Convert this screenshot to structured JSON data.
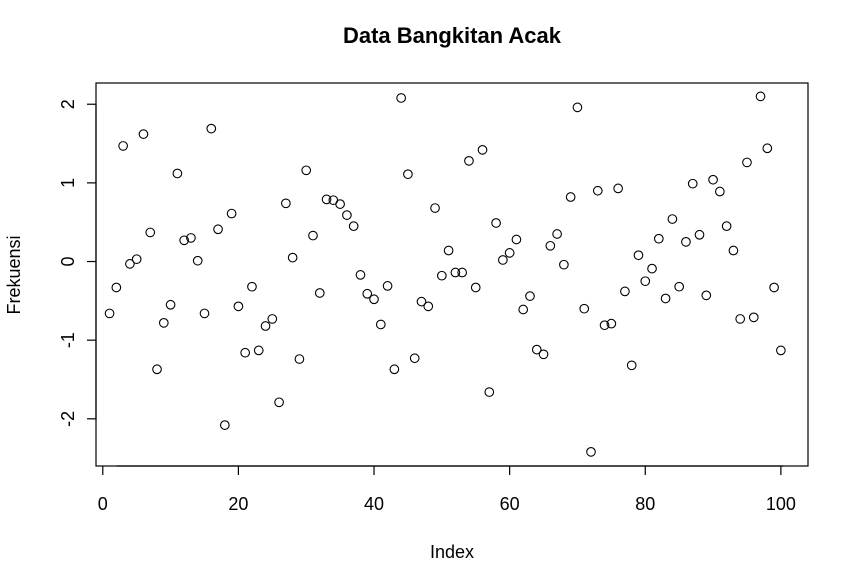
{
  "chart_data": {
    "type": "scatter",
    "title": "Data Bangkitan Acak",
    "xlabel": "Index",
    "ylabel": "Frekuensi",
    "xlim": [
      -1,
      104
    ],
    "ylim": [
      -2.6,
      2.27
    ],
    "x_ticks": [
      0,
      20,
      40,
      60,
      80,
      100
    ],
    "y_ticks": [
      -2,
      -1,
      0,
      1,
      2
    ],
    "x_tick_labels": [
      "0",
      "20",
      "40",
      "60",
      "80",
      "100"
    ],
    "y_tick_labels": [
      "-2",
      "-1",
      "0",
      "1",
      "2"
    ],
    "grid": false,
    "legend": "none",
    "marker": "open-circle",
    "x": [
      1,
      2,
      3,
      4,
      5,
      6,
      7,
      8,
      9,
      10,
      11,
      12,
      13,
      14,
      15,
      16,
      17,
      18,
      19,
      20,
      21,
      22,
      23,
      24,
      25,
      26,
      27,
      28,
      29,
      30,
      31,
      32,
      33,
      34,
      35,
      36,
      37,
      38,
      39,
      40,
      41,
      42,
      43,
      44,
      45,
      46,
      47,
      48,
      49,
      50,
      51,
      52,
      53,
      54,
      55,
      56,
      57,
      58,
      59,
      60,
      61,
      62,
      63,
      64,
      65,
      66,
      67,
      68,
      69,
      70,
      71,
      72,
      73,
      74,
      75,
      76,
      77,
      78,
      79,
      80,
      81,
      82,
      83,
      84,
      85,
      86,
      87,
      88,
      89,
      90,
      91,
      92,
      93,
      94,
      95,
      96,
      97,
      98,
      99,
      100
    ],
    "y": [
      -0.66,
      -0.33,
      1.47,
      -0.03,
      0.03,
      1.62,
      0.37,
      -1.37,
      -0.78,
      -0.55,
      1.12,
      0.27,
      0.3,
      0.01,
      -0.66,
      1.69,
      0.41,
      -2.08,
      0.61,
      -0.57,
      -1.16,
      -0.32,
      -1.13,
      -0.82,
      -0.73,
      -1.79,
      0.74,
      0.05,
      -1.24,
      1.16,
      0.33,
      -0.4,
      0.79,
      0.78,
      0.73,
      0.59,
      0.45,
      -0.17,
      -0.41,
      -0.48,
      -0.8,
      -0.31,
      -1.37,
      2.08,
      1.11,
      -1.23,
      -0.51,
      -0.57,
      0.68,
      -0.18,
      0.14,
      -0.14,
      -0.14,
      1.28,
      -0.33,
      1.42,
      -1.66,
      0.49,
      0.02,
      0.11,
      0.28,
      -0.61,
      -0.44,
      -1.12,
      -1.18,
      0.2,
      0.35,
      -0.04,
      0.82,
      1.96,
      -0.6,
      -2.42,
      0.9,
      -0.81,
      -0.79,
      0.93,
      -0.38,
      -1.32,
      0.08,
      -0.25,
      -0.09,
      0.29,
      -0.47,
      0.54,
      -0.32,
      0.25,
      0.99,
      0.34,
      -0.43,
      1.04,
      0.89,
      0.45,
      0.14,
      -0.73,
      1.26,
      -0.71,
      2.1,
      1.44,
      -0.33,
      -1.13
    ]
  }
}
